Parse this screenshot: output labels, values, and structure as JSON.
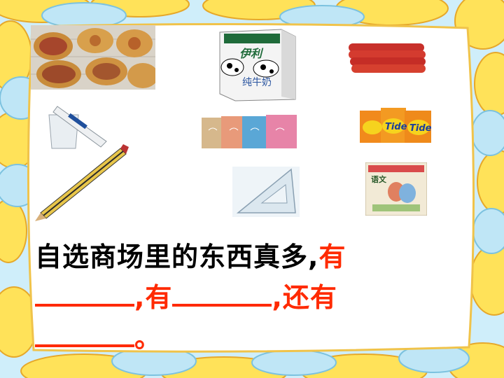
{
  "products": [
    {
      "name": "bread",
      "icon": "pizza-bread-icon"
    },
    {
      "name": "milk",
      "icon": "milk-carton-icon",
      "brand_text": "伊利",
      "label_text": "纯牛奶"
    },
    {
      "name": "sausage",
      "icon": "sausage-icon"
    },
    {
      "name": "toothpaste",
      "icon": "toothpaste-cup-icon"
    },
    {
      "name": "towels",
      "icon": "towel-stack-icon"
    },
    {
      "name": "detergent",
      "icon": "detergent-bag-icon",
      "brand_text": "Tide"
    },
    {
      "name": "pencil",
      "icon": "pencil-icon"
    },
    {
      "name": "triangle-ruler",
      "icon": "set-square-icon"
    },
    {
      "name": "textbook",
      "icon": "textbook-icon",
      "title_text": "语文"
    }
  ],
  "sentence": {
    "part1": "自选商场里的东西真多,",
    "you1": "有",
    "sep1": ",有",
    "sep2": ",还有",
    "end": "。"
  },
  "colors": {
    "text": "#000000",
    "accent": "#ff2a00",
    "cloud_yellow": "#ffe259",
    "cloud_blue": "#bfe6f6"
  }
}
